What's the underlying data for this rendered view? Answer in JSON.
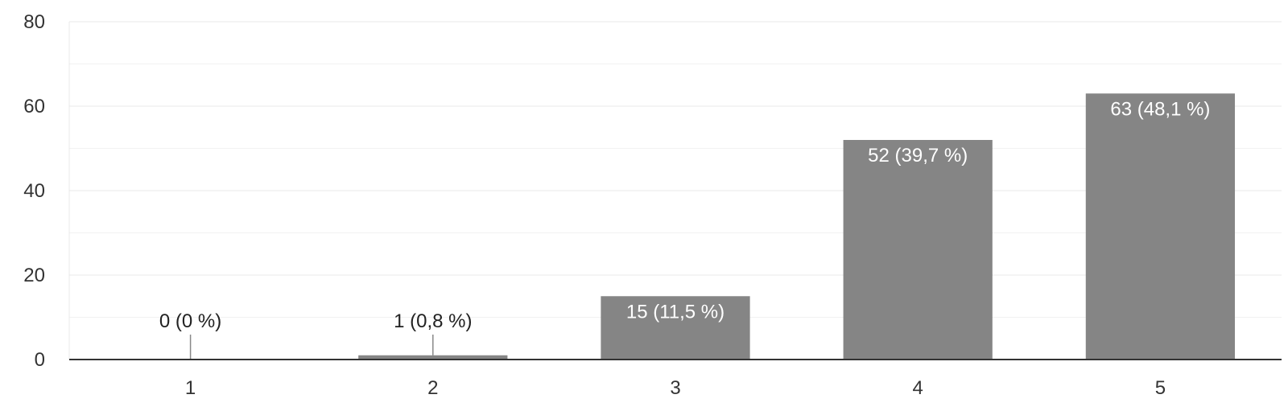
{
  "chart_data": {
    "type": "bar",
    "categories": [
      "1",
      "2",
      "3",
      "4",
      "5"
    ],
    "values": [
      0,
      1,
      15,
      52,
      63
    ],
    "data_labels": [
      "0 (0 %)",
      "1 (0,8 %)",
      "15 (11,5 %)",
      "52 (39,7 %)",
      "63 (48,1 %)"
    ],
    "y_ticks": [
      "0",
      "20",
      "40",
      "60",
      "80"
    ],
    "y_tick_values": [
      0,
      20,
      40,
      60,
      80
    ],
    "ylim": [
      0,
      80
    ],
    "grid": true,
    "legend": "none",
    "colors": {
      "bar": "#858585",
      "label_inside": "#ffffff",
      "label_outside": "#222222"
    }
  }
}
